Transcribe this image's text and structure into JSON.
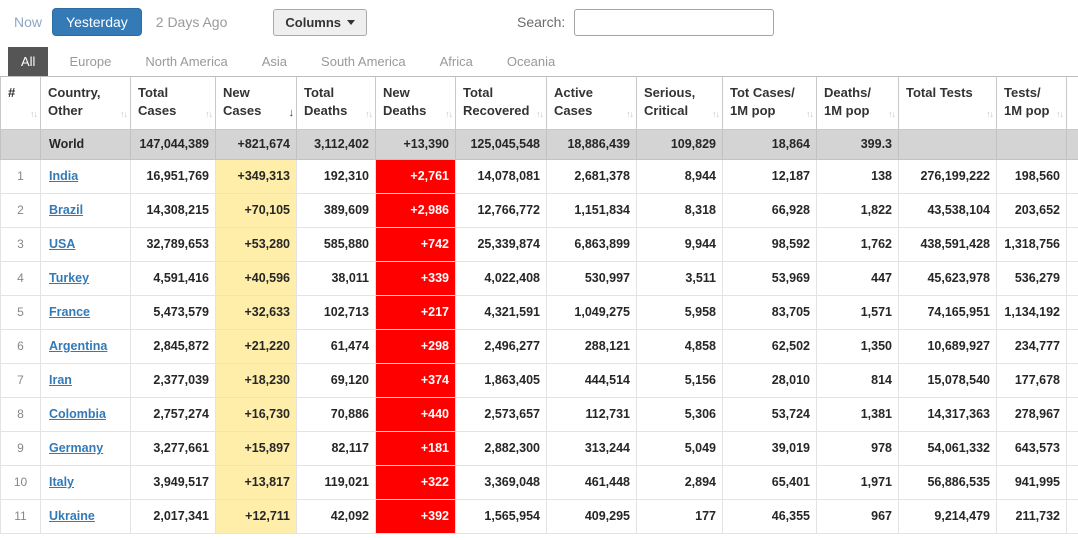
{
  "toolbar": {
    "now_label": "Now",
    "yesterday_label": "Yesterday",
    "two_days_label": "2 Days Ago",
    "columns_label": "Columns",
    "search_label": "Search:",
    "search_value": ""
  },
  "tabs": [
    {
      "label": "All",
      "active": true
    },
    {
      "label": "Europe",
      "active": false
    },
    {
      "label": "North America",
      "active": false
    },
    {
      "label": "Asia",
      "active": false
    },
    {
      "label": "South America",
      "active": false
    },
    {
      "label": "Africa",
      "active": false
    },
    {
      "label": "Oceania",
      "active": false
    }
  ],
  "icons": {
    "caret_down": "▼",
    "sort_both": "↑↓",
    "sort_desc": "↓"
  },
  "table": {
    "sort": {
      "column": "new_cases",
      "direction": "desc"
    },
    "columns": [
      {
        "key": "rank",
        "label": "#"
      },
      {
        "key": "country",
        "label": "Country, Other"
      },
      {
        "key": "total_cases",
        "label": "Total Cases"
      },
      {
        "key": "new_cases",
        "label": "New Cases"
      },
      {
        "key": "total_deaths",
        "label": "Total Deaths"
      },
      {
        "key": "new_deaths",
        "label": "New Deaths"
      },
      {
        "key": "total_recovered",
        "label": "Total Recovered"
      },
      {
        "key": "active_cases",
        "label": "Active Cases"
      },
      {
        "key": "serious_critical",
        "label": "Serious, Critical"
      },
      {
        "key": "cases_per_1m",
        "label": "Tot Cases/ 1M pop"
      },
      {
        "key": "deaths_per_1m",
        "label": "Deaths/ 1M pop"
      },
      {
        "key": "total_tests",
        "label": "Total Tests"
      },
      {
        "key": "tests_per_1m",
        "label": "Tests/ 1M pop"
      }
    ],
    "world_row": {
      "rank": "",
      "country": "World",
      "total_cases": "147,044,389",
      "new_cases": "+821,674",
      "total_deaths": "3,112,402",
      "new_deaths": "+13,390",
      "total_recovered": "125,045,548",
      "active_cases": "18,886,439",
      "serious_critical": "109,829",
      "cases_per_1m": "18,864",
      "deaths_per_1m": "399.3",
      "total_tests": "",
      "tests_per_1m": ""
    },
    "rows": [
      {
        "rank": "1",
        "country": "India",
        "total_cases": "16,951,769",
        "new_cases": "+349,313",
        "total_deaths": "192,310",
        "new_deaths": "+2,761",
        "total_recovered": "14,078,081",
        "active_cases": "2,681,378",
        "serious_critical": "8,944",
        "cases_per_1m": "12,187",
        "deaths_per_1m": "138",
        "total_tests": "276,199,222",
        "tests_per_1m": "198,560"
      },
      {
        "rank": "2",
        "country": "Brazil",
        "total_cases": "14,308,215",
        "new_cases": "+70,105",
        "total_deaths": "389,609",
        "new_deaths": "+2,986",
        "total_recovered": "12,766,772",
        "active_cases": "1,151,834",
        "serious_critical": "8,318",
        "cases_per_1m": "66,928",
        "deaths_per_1m": "1,822",
        "total_tests": "43,538,104",
        "tests_per_1m": "203,652"
      },
      {
        "rank": "3",
        "country": "USA",
        "total_cases": "32,789,653",
        "new_cases": "+53,280",
        "total_deaths": "585,880",
        "new_deaths": "+742",
        "total_recovered": "25,339,874",
        "active_cases": "6,863,899",
        "serious_critical": "9,944",
        "cases_per_1m": "98,592",
        "deaths_per_1m": "1,762",
        "total_tests": "438,591,428",
        "tests_per_1m": "1,318,756"
      },
      {
        "rank": "4",
        "country": "Turkey",
        "total_cases": "4,591,416",
        "new_cases": "+40,596",
        "total_deaths": "38,011",
        "new_deaths": "+339",
        "total_recovered": "4,022,408",
        "active_cases": "530,997",
        "serious_critical": "3,511",
        "cases_per_1m": "53,969",
        "deaths_per_1m": "447",
        "total_tests": "45,623,978",
        "tests_per_1m": "536,279"
      },
      {
        "rank": "5",
        "country": "France",
        "total_cases": "5,473,579",
        "new_cases": "+32,633",
        "total_deaths": "102,713",
        "new_deaths": "+217",
        "total_recovered": "4,321,591",
        "active_cases": "1,049,275",
        "serious_critical": "5,958",
        "cases_per_1m": "83,705",
        "deaths_per_1m": "1,571",
        "total_tests": "74,165,951",
        "tests_per_1m": "1,134,192"
      },
      {
        "rank": "6",
        "country": "Argentina",
        "total_cases": "2,845,872",
        "new_cases": "+21,220",
        "total_deaths": "61,474",
        "new_deaths": "+298",
        "total_recovered": "2,496,277",
        "active_cases": "288,121",
        "serious_critical": "4,858",
        "cases_per_1m": "62,502",
        "deaths_per_1m": "1,350",
        "total_tests": "10,689,927",
        "tests_per_1m": "234,777"
      },
      {
        "rank": "7",
        "country": "Iran",
        "total_cases": "2,377,039",
        "new_cases": "+18,230",
        "total_deaths": "69,120",
        "new_deaths": "+374",
        "total_recovered": "1,863,405",
        "active_cases": "444,514",
        "serious_critical": "5,156",
        "cases_per_1m": "28,010",
        "deaths_per_1m": "814",
        "total_tests": "15,078,540",
        "tests_per_1m": "177,678"
      },
      {
        "rank": "8",
        "country": "Colombia",
        "total_cases": "2,757,274",
        "new_cases": "+16,730",
        "total_deaths": "70,886",
        "new_deaths": "+440",
        "total_recovered": "2,573,657",
        "active_cases": "112,731",
        "serious_critical": "5,306",
        "cases_per_1m": "53,724",
        "deaths_per_1m": "1,381",
        "total_tests": "14,317,363",
        "tests_per_1m": "278,967"
      },
      {
        "rank": "9",
        "country": "Germany",
        "total_cases": "3,277,661",
        "new_cases": "+15,897",
        "total_deaths": "82,117",
        "new_deaths": "+181",
        "total_recovered": "2,882,300",
        "active_cases": "313,244",
        "serious_critical": "5,049",
        "cases_per_1m": "39,019",
        "deaths_per_1m": "978",
        "total_tests": "54,061,332",
        "tests_per_1m": "643,573"
      },
      {
        "rank": "10",
        "country": "Italy",
        "total_cases": "3,949,517",
        "new_cases": "+13,817",
        "total_deaths": "119,021",
        "new_deaths": "+322",
        "total_recovered": "3,369,048",
        "active_cases": "461,448",
        "serious_critical": "2,894",
        "cases_per_1m": "65,401",
        "deaths_per_1m": "1,971",
        "total_tests": "56,886,535",
        "tests_per_1m": "941,995"
      },
      {
        "rank": "11",
        "country": "Ukraine",
        "total_cases": "2,017,341",
        "new_cases": "+12,711",
        "total_deaths": "42,092",
        "new_deaths": "+392",
        "total_recovered": "1,565,954",
        "active_cases": "409,295",
        "serious_critical": "177",
        "cases_per_1m": "46,355",
        "deaths_per_1m": "967",
        "total_tests": "9,214,479",
        "tests_per_1m": "211,732"
      }
    ]
  },
  "colors": {
    "accent_blue": "#337ab7",
    "link_color": "#337ab7",
    "tab_active_bg": "#555555",
    "new_cases_bg": "#FFEEAA",
    "new_deaths_bg": "#FF0000",
    "new_deaths_text": "#FFFFFF",
    "world_row_bg": "#D4D4D4"
  }
}
